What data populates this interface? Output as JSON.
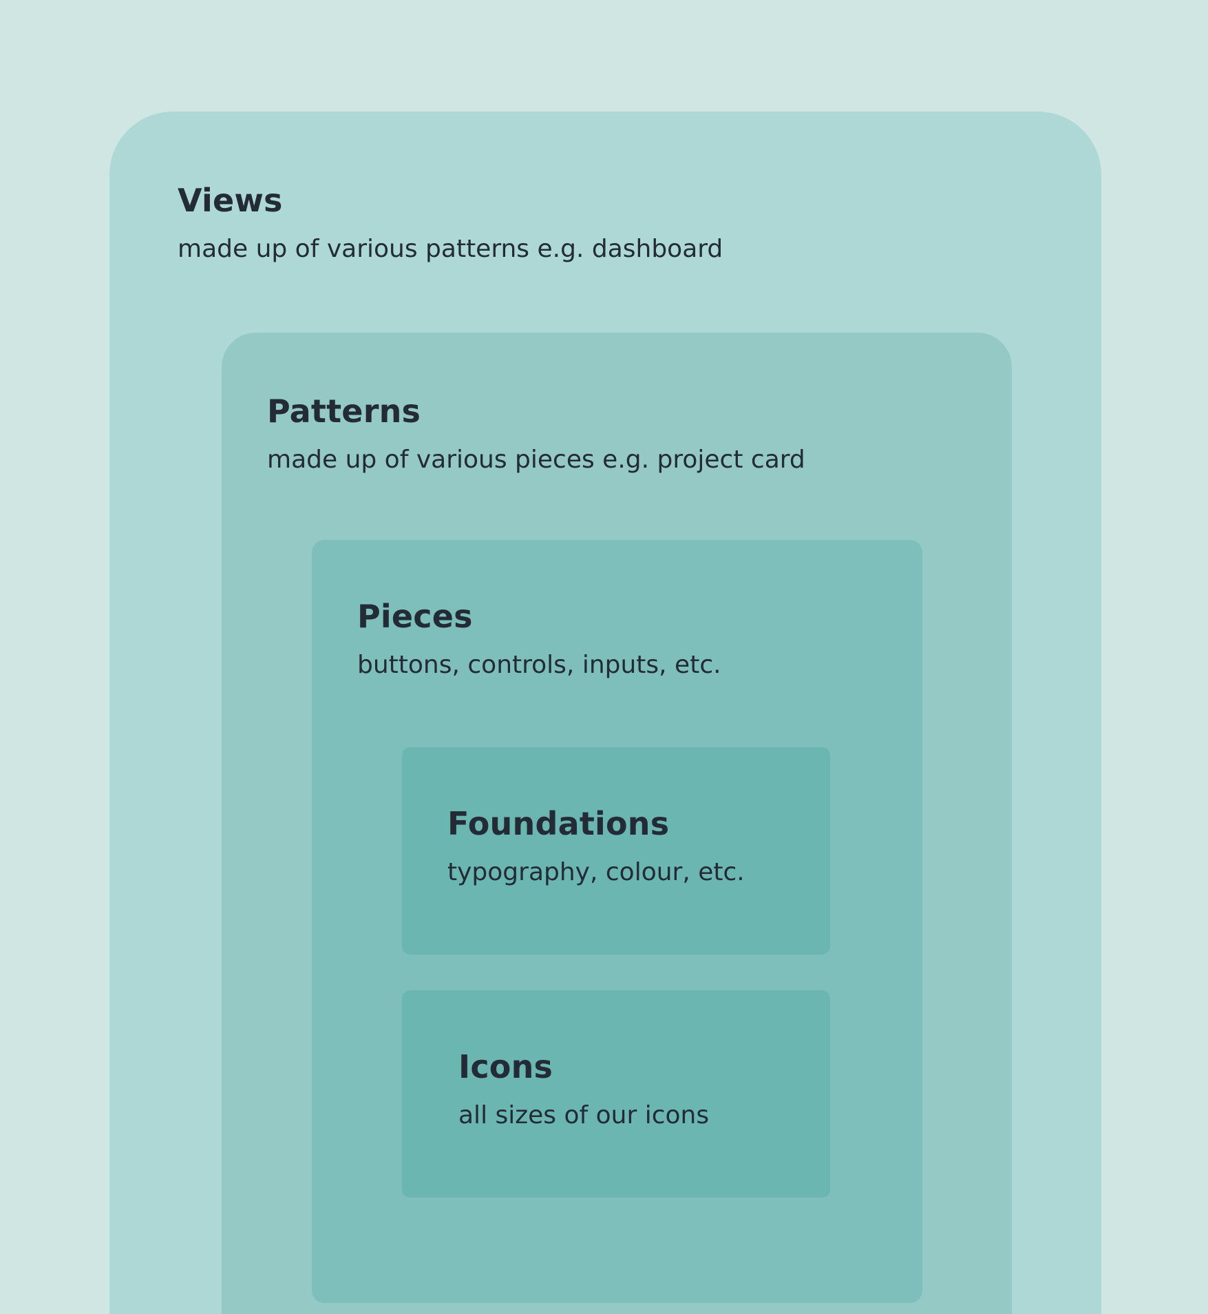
{
  "views": {
    "title": "Views",
    "description": "made up of various patterns e.g. dashboard"
  },
  "patterns": {
    "title": "Patterns",
    "description": "made up of various pieces e.g. project card"
  },
  "pieces": {
    "title": "Pieces",
    "description": "buttons, controls, inputs, etc."
  },
  "foundations": {
    "title": "Foundations",
    "description": "typography, colour, etc."
  },
  "icons": {
    "title": "Icons",
    "description": "all sizes of our icons"
  },
  "colors": {
    "background": "#cfe6e3",
    "views": "#add8d6",
    "patterns": "#94c9c6",
    "pieces": "#7ebfbb",
    "foundations": "#6bb6b1",
    "icons": "#6bb6b1",
    "text": "#232b36"
  }
}
